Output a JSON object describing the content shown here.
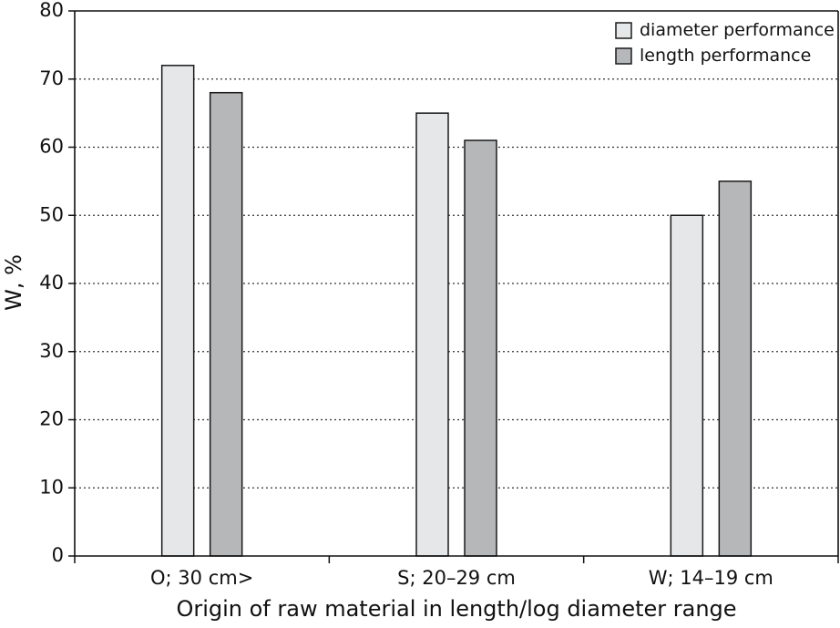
{
  "chart_data": {
    "type": "bar",
    "title": "",
    "xlabel": "Origin of raw material in length/log diameter range",
    "ylabel": "W, %",
    "ylim": [
      0,
      80
    ],
    "yticks": [
      0,
      10,
      20,
      30,
      40,
      50,
      60,
      70,
      80
    ],
    "ytick_labels": [
      "0",
      "10",
      "20",
      "30",
      "40",
      "50",
      "60",
      "70",
      "80"
    ],
    "categories": [
      "O; 30 cm>",
      "S; 20–29 cm",
      "W; 14–19 cm"
    ],
    "series": [
      {
        "name": "diameter performance",
        "values": [
          72,
          65,
          50
        ]
      },
      {
        "name": "length performance",
        "values": [
          68,
          61,
          55
        ]
      }
    ],
    "grid": "horizontal dotted",
    "legend_position": "top-right",
    "colors": {
      "diameter performance": "#e6e7e9",
      "length performance": "#b6b7b9",
      "outline": "#1a1a1a",
      "grid": "#333333"
    }
  }
}
